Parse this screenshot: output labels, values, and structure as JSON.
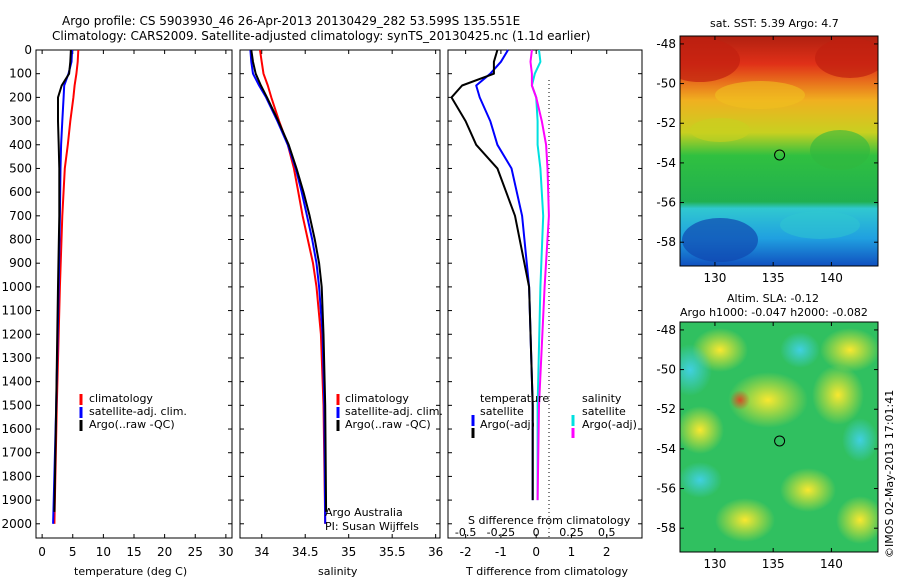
{
  "header": {
    "line1": "Argo profile: CS 5903930_46 26-Apr-2013 20130429_282 53.599S 135.551E",
    "line2": "Climatology: CARS2009. Satellite-adjusted climatology: synTS_20130425.nc (1.1d earlier)"
  },
  "colors": {
    "climatology": "#ff0000",
    "satellite": "#0000ff",
    "argo": "#000000",
    "sal_satellite": "#00e0e0",
    "sal_argo": "#ff00ff"
  },
  "panel_temp": {
    "xlabel": "temperature (deg C)",
    "legend": [
      "climatology",
      "satellite-adj. clim.",
      "Argo(..raw -QC)"
    ]
  },
  "panel_sal": {
    "xlabel": "salinity",
    "legend": [
      "climatology",
      "satellite-adj. clim.",
      "Argo(..raw -QC)"
    ],
    "note1": "Argo Australia",
    "note2": "PI: Susan Wijffels"
  },
  "panel_diff": {
    "xlabel": "T difference from climatology",
    "top_label": "S difference from climatology",
    "legend_temp_title": "temperature",
    "legend_sal_title": "salinity",
    "legend_temp": [
      "satellite",
      "Argo(-adj)"
    ],
    "legend_sal": [
      "satellite",
      "Argo(-adj)"
    ]
  },
  "map_sst": {
    "title": "sat. SST: 5.39 Argo: 4.7"
  },
  "map_sla": {
    "title1": "Altim. SLA: -0.12",
    "title2": "Argo h1000: -0.047 h2000: -0.082"
  },
  "footer": {
    "stamp": "©IMOS 02-May-2013 17:01:41"
  },
  "chart_data": [
    {
      "type": "line",
      "name": "temperature profile",
      "xlabel": "temperature (deg C)",
      "ylabel": "",
      "xlim": [
        -1,
        31
      ],
      "ylim": [
        2060,
        0
      ],
      "x_ticks": [
        0,
        5,
        10,
        15,
        20,
        25,
        30
      ],
      "y_ticks": [
        0,
        100,
        200,
        300,
        400,
        500,
        600,
        700,
        800,
        900,
        1000,
        1100,
        1200,
        1300,
        1400,
        1500,
        1600,
        1700,
        1800,
        1900,
        2000
      ],
      "legend_location": "lower-center",
      "series": [
        {
          "name": "climatology",
          "color": "#ff0000",
          "depth": [
            0,
            50,
            100,
            150,
            200,
            300,
            400,
            500,
            700,
            1000,
            1500,
            2000
          ],
          "values": [
            5.9,
            5.8,
            5.6,
            5.3,
            5.1,
            4.6,
            4.2,
            3.7,
            3.3,
            2.9,
            2.4,
            2.0
          ]
        },
        {
          "name": "satellite-adj. clim.",
          "color": "#0000ff",
          "depth": [
            0,
            50,
            100,
            150,
            200,
            300,
            400,
            500,
            700,
            1000,
            1500,
            2000
          ],
          "values": [
            4.9,
            4.8,
            4.3,
            3.6,
            3.5,
            3.3,
            3.1,
            3.0,
            2.9,
            2.7,
            2.3,
            1.8
          ]
        },
        {
          "name": "Argo(..raw -QC)",
          "color": "#000000",
          "depth": [
            0,
            50,
            100,
            150,
            200,
            300,
            400,
            500,
            700,
            1000,
            1500,
            1950
          ],
          "values": [
            4.7,
            4.6,
            4.4,
            3.2,
            2.6,
            2.6,
            2.7,
            2.8,
            2.8,
            2.6,
            2.3,
            2.0
          ]
        }
      ]
    },
    {
      "type": "line",
      "name": "salinity profile",
      "xlabel": "salinity",
      "xlim": [
        33.75,
        36.05
      ],
      "ylim": [
        2060,
        0
      ],
      "x_ticks": [
        34,
        34.5,
        35,
        35.5,
        36
      ],
      "series": [
        {
          "name": "climatology",
          "color": "#ff0000",
          "depth": [
            0,
            50,
            100,
            150,
            200,
            300,
            400,
            500,
            600,
            700,
            800,
            900,
            1000,
            1200,
            1500,
            2000
          ],
          "values": [
            33.98,
            34.0,
            34.02,
            34.07,
            34.11,
            34.2,
            34.3,
            34.37,
            34.42,
            34.47,
            34.53,
            34.59,
            34.63,
            34.68,
            34.71,
            34.73
          ]
        },
        {
          "name": "satellite-adj. clim.",
          "color": "#0000ff",
          "depth": [
            0,
            50,
            100,
            150,
            200,
            300,
            400,
            500,
            600,
            700,
            800,
            900,
            1000,
            1200,
            1500,
            2000
          ],
          "values": [
            33.87,
            33.88,
            33.9,
            33.97,
            34.05,
            34.18,
            34.3,
            34.39,
            34.46,
            34.52,
            34.58,
            34.63,
            34.66,
            34.7,
            34.72,
            34.73
          ]
        },
        {
          "name": "Argo(..raw -QC)",
          "color": "#000000",
          "depth": [
            0,
            50,
            100,
            150,
            200,
            300,
            400,
            500,
            600,
            700,
            800,
            900,
            1000,
            1200,
            1500,
            1950
          ],
          "values": [
            33.88,
            33.9,
            33.93,
            33.99,
            34.06,
            34.19,
            34.31,
            34.4,
            34.48,
            34.55,
            34.61,
            34.66,
            34.69,
            34.71,
            34.73,
            34.74
          ]
        }
      ]
    },
    {
      "type": "line",
      "name": "difference from climatology",
      "xlabel": "T difference from climatology",
      "x2label": "S difference from climatology",
      "xlim": [
        -2.5,
        3.0
      ],
      "x_ticks": [
        -2,
        -1,
        0,
        1,
        2
      ],
      "x2_ticks": [
        -0.5,
        -0.25,
        0,
        0.25,
        0.5
      ],
      "ylim": [
        2060,
        0
      ],
      "series": [
        {
          "name": "temperature satellite",
          "color": "#0000ff",
          "depth": [
            0,
            50,
            100,
            150,
            200,
            300,
            400,
            500,
            700,
            1000,
            1500,
            1900
          ],
          "values": [
            -0.8,
            -1.0,
            -1.3,
            -1.7,
            -1.6,
            -1.3,
            -1.1,
            -0.7,
            -0.4,
            -0.2,
            -0.1,
            -0.1
          ]
        },
        {
          "name": "temperature Argo(-adj)",
          "color": "#000000",
          "depth": [
            0,
            50,
            100,
            150,
            200,
            300,
            400,
            500,
            700,
            1000,
            1500,
            1900
          ],
          "values": [
            -1.1,
            -1.2,
            -1.2,
            -2.1,
            -2.4,
            -2.0,
            -1.7,
            -1.1,
            -0.6,
            -0.2,
            -0.1,
            -0.1
          ]
        },
        {
          "name": "salinity satellite",
          "color": "#00e0e0",
          "depth": [
            0,
            50,
            100,
            150,
            200,
            300,
            400,
            500,
            700,
            1000,
            1500,
            1900
          ],
          "values": [
            0.02,
            0.03,
            -0.01,
            -0.03,
            0.0,
            0.01,
            0.01,
            0.03,
            0.05,
            0.03,
            0.01,
            0.01
          ]
        },
        {
          "name": "salinity Argo(-adj)",
          "color": "#ff00ff",
          "depth": [
            0,
            50,
            100,
            150,
            200,
            300,
            400,
            500,
            700,
            1000,
            1500,
            1900
          ],
          "values": [
            -0.03,
            -0.04,
            -0.03,
            -0.03,
            0.0,
            0.04,
            0.07,
            0.08,
            0.09,
            0.06,
            0.02,
            0.01
          ]
        }
      ]
    },
    {
      "type": "heatmap",
      "name": "sat. SST map",
      "xlim": [
        127,
        144
      ],
      "ylim": [
        -59.2,
        -47.6
      ],
      "x_ticks": [
        130,
        135,
        140
      ],
      "y_ticks": [
        -48,
        -50,
        -52,
        -54,
        -56,
        -58
      ],
      "marker": {
        "lon": 135.551,
        "lat": -53.599
      }
    },
    {
      "type": "heatmap",
      "name": "Altim. SLA map",
      "xlim": [
        127,
        144
      ],
      "ylim": [
        -59.2,
        -47.6
      ],
      "x_ticks": [
        130,
        135,
        140
      ],
      "y_ticks": [
        -48,
        -50,
        -52,
        -54,
        -56,
        -58
      ],
      "marker": {
        "lon": 135.551,
        "lat": -53.599
      }
    }
  ]
}
